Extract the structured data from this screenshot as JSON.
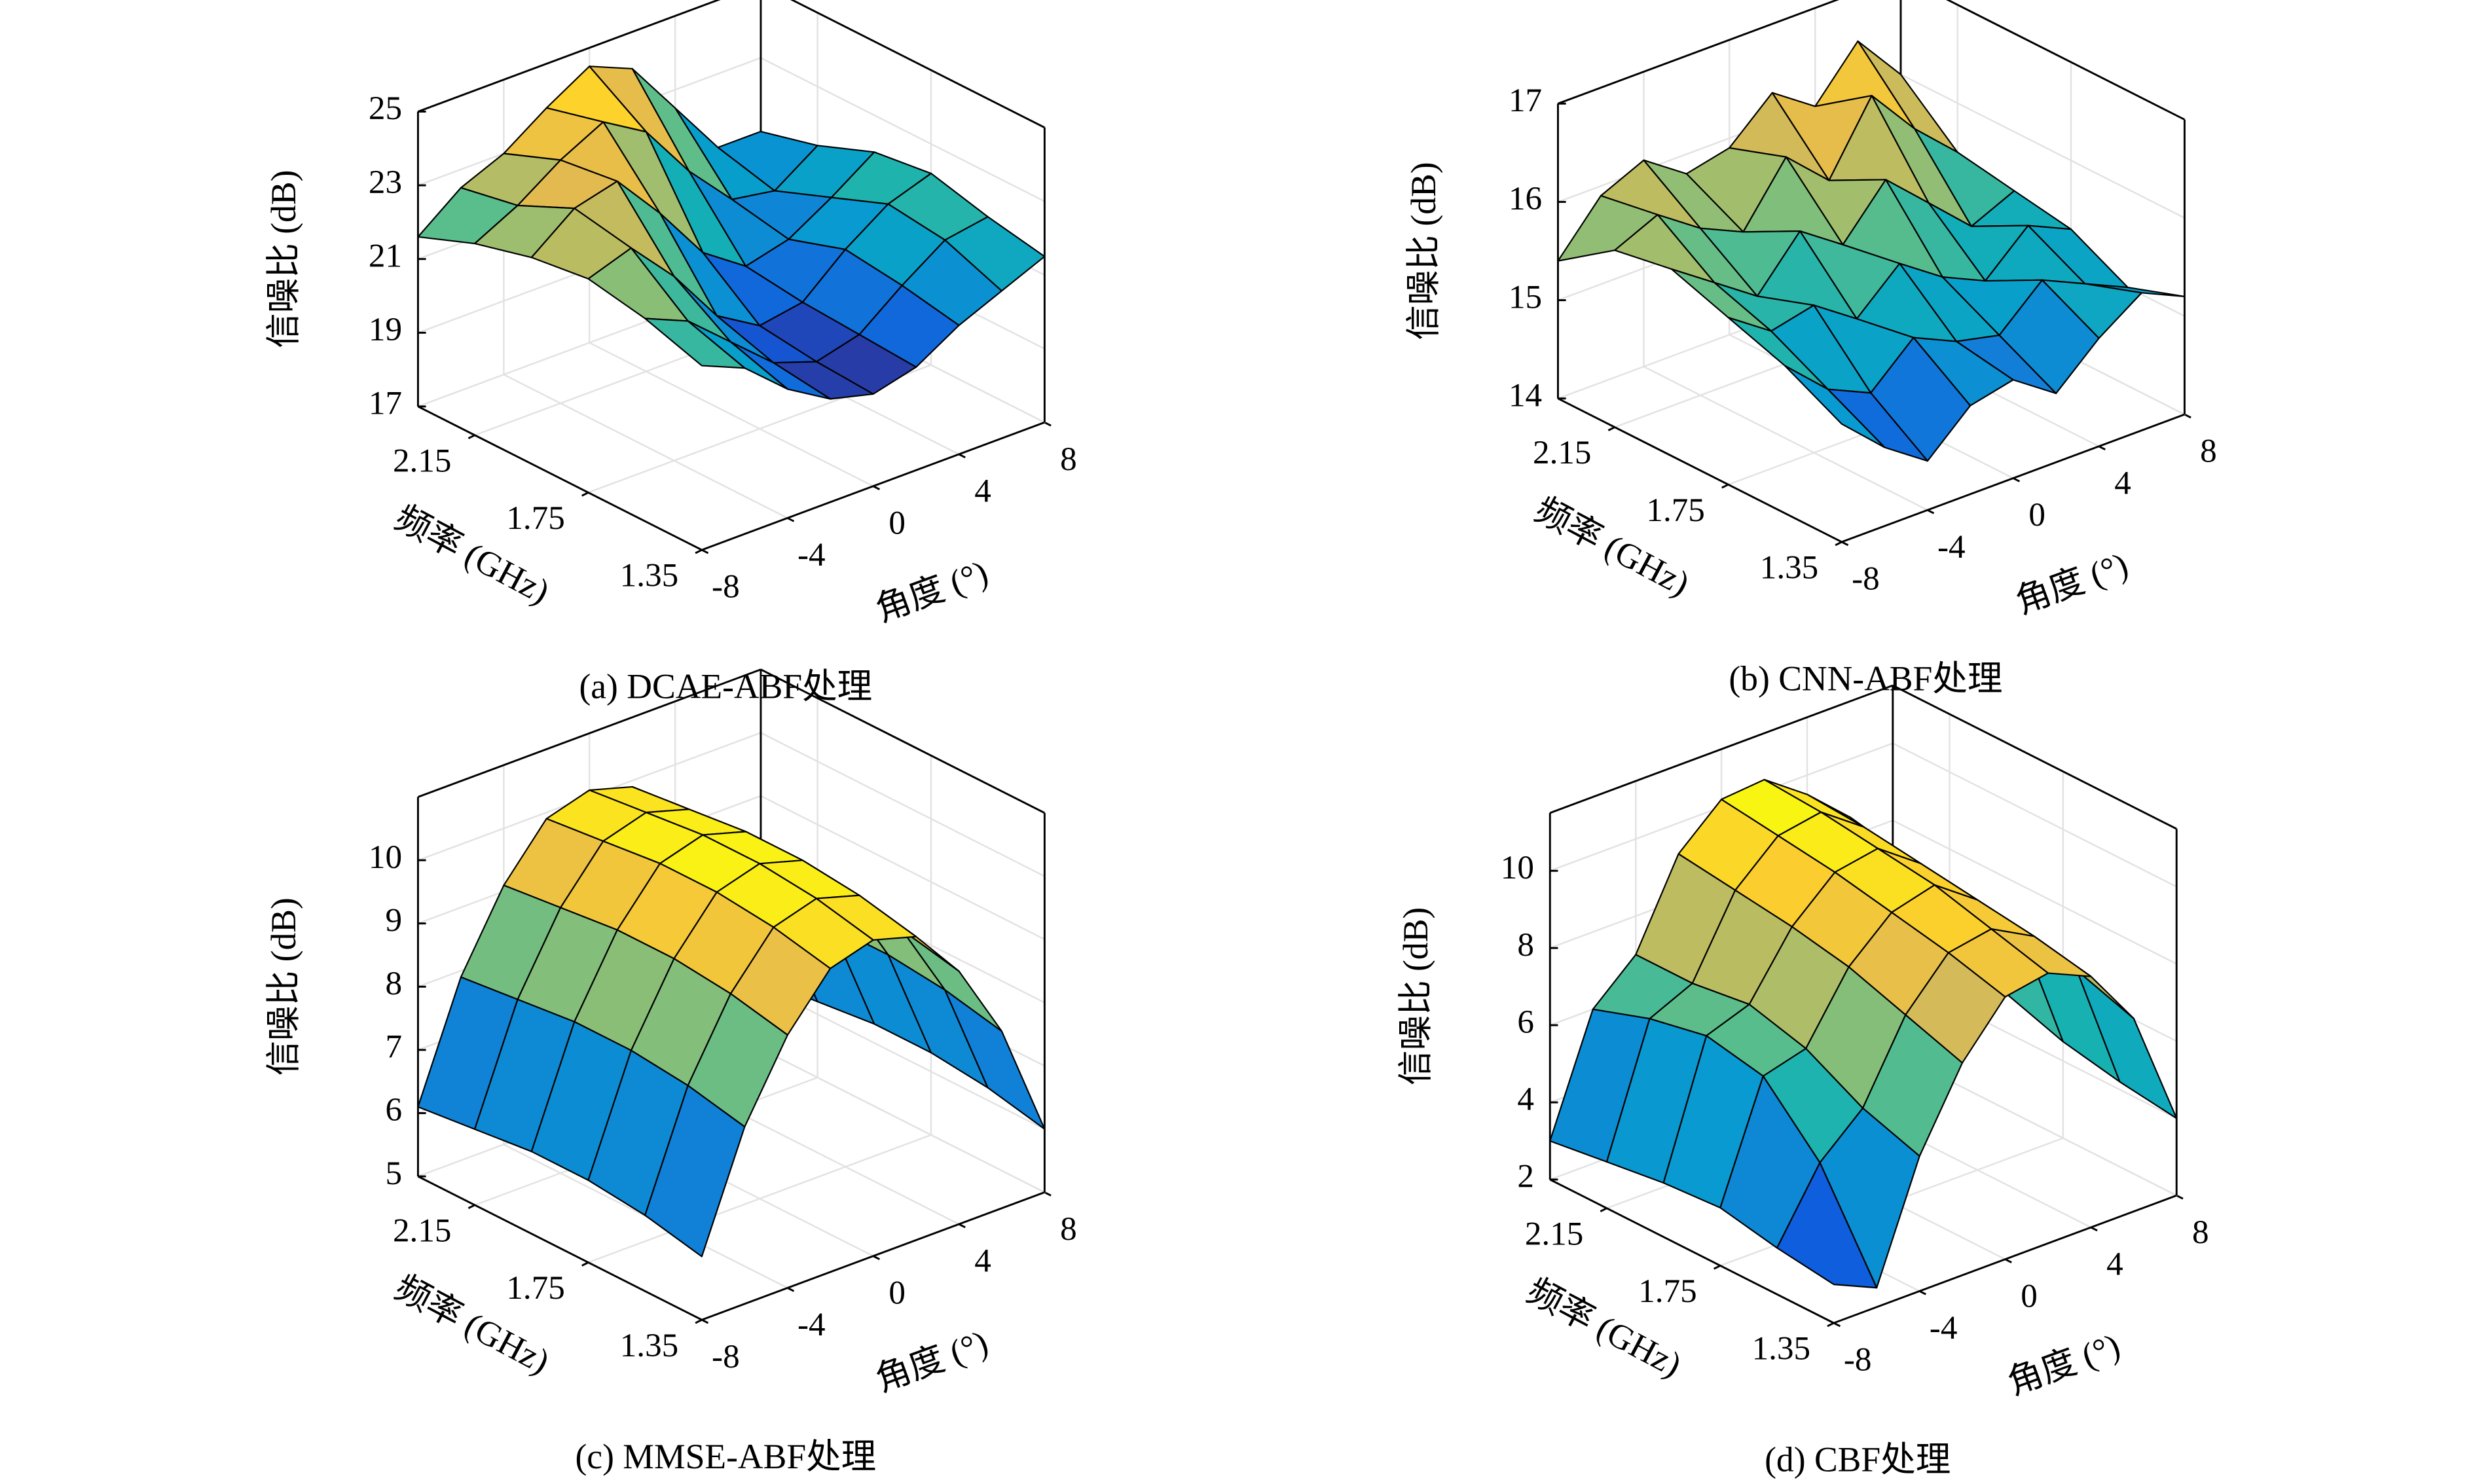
{
  "chart_data": [
    {
      "type": "surface",
      "title": "(a) DCAE-ABF处理",
      "xlabel": "角度 (°)",
      "ylabel": "频率 (GHz)",
      "zlabel": "信噪比 (dB)",
      "x": [
        -8,
        -6,
        -4,
        -2,
        0,
        2,
        4,
        6,
        8
      ],
      "y": [
        1.35,
        1.55,
        1.75,
        1.95,
        2.15,
        2.35
      ],
      "values": [
        [
          22.0,
          21.5,
          20.5,
          19.8,
          19.5,
          19.8,
          20.5,
          21.0,
          21.5
        ],
        [
          22.5,
          22.0,
          21.0,
          20.0,
          19.6,
          19.9,
          20.8,
          21.6,
          21.8
        ],
        [
          22.8,
          23.2,
          22.0,
          20.5,
          19.8,
          20.0,
          21.0,
          21.8,
          22.2
        ],
        [
          22.6,
          23.5,
          23.8,
          22.5,
          21.0,
          20.2,
          20.5,
          21.2,
          22.0
        ],
        [
          22.2,
          22.8,
          23.6,
          24.2,
          23.5,
          22.0,
          20.8,
          20.6,
          21.4
        ],
        [
          21.6,
          22.5,
          23.0,
          23.8,
          24.5,
          24.0,
          22.5,
          21.0,
          21.0
        ]
      ],
      "xlim": [
        -8,
        8
      ],
      "ylim": [
        1.35,
        2.35
      ],
      "zlim": [
        17,
        25
      ],
      "xticks": [
        -8,
        -4,
        0,
        4,
        8
      ],
      "yticks": [
        1.35,
        1.75,
        2.15
      ],
      "zticks": [
        17,
        19,
        21,
        23,
        25
      ],
      "grid": true,
      "colormap": "parula"
    },
    {
      "type": "surface",
      "title": "(b) CNN-ABF处理",
      "xlabel": "角度 (°)",
      "ylabel": "频率 (GHz)",
      "zlabel": "信噪比 (dB)",
      "x": [
        -8,
        -6,
        -4,
        -2,
        0,
        2,
        4,
        6,
        8
      ],
      "y": [
        1.35,
        1.55,
        1.75,
        1.95,
        2.15,
        2.35
      ],
      "values": [
        [
          15.2,
          14.8,
          14.5,
          14.9,
          15.0,
          14.7,
          15.1,
          15.4,
          15.2
        ],
        [
          15.5,
          15.1,
          14.9,
          15.3,
          15.1,
          15.0,
          15.4,
          15.2,
          15.0
        ],
        [
          15.7,
          15.4,
          15.5,
          15.2,
          15.6,
          15.3,
          15.1,
          15.5,
          15.3
        ],
        [
          15.9,
          15.6,
          15.3,
          15.8,
          15.5,
          16.0,
          15.6,
          15.2,
          15.4
        ],
        [
          15.8,
          16.0,
          15.7,
          15.5,
          16.1,
          15.7,
          16.4,
          15.9,
          15.5
        ],
        [
          15.4,
          15.9,
          16.1,
          15.8,
          15.9,
          16.3,
          16.0,
          16.5,
          16.0
        ]
      ],
      "xlim": [
        -8,
        8
      ],
      "ylim": [
        1.35,
        2.35
      ],
      "zlim": [
        14,
        17
      ],
      "xticks": [
        -8,
        -4,
        0,
        4,
        8
      ],
      "yticks": [
        1.35,
        1.75,
        2.15
      ],
      "zticks": [
        14,
        15,
        16,
        17
      ],
      "grid": true,
      "colormap": "parula"
    },
    {
      "type": "surface",
      "title": "(c) MMSE-ABF处理",
      "xlabel": "角度 (°)",
      "ylabel": "频率 (GHz)",
      "zlabel": "信噪比 (dB)",
      "x": [
        -8,
        -6,
        -4,
        -2,
        0,
        2,
        4,
        6,
        8
      ],
      "y": [
        1.35,
        1.55,
        1.75,
        1.95,
        2.15,
        2.35
      ],
      "values": [
        [
          6.0,
          7.8,
          9.0,
          9.8,
          10.0,
          9.8,
          9.0,
          7.8,
          6.0
        ],
        [
          6.2,
          8.0,
          9.2,
          10.0,
          10.2,
          10.0,
          9.2,
          8.0,
          6.2
        ],
        [
          6.3,
          8.1,
          9.3,
          10.1,
          10.3,
          10.1,
          9.3,
          8.1,
          6.3
        ],
        [
          6.3,
          8.1,
          9.3,
          10.1,
          10.3,
          10.1,
          9.3,
          8.1,
          6.3
        ],
        [
          6.2,
          8.0,
          9.2,
          10.0,
          10.2,
          10.0,
          9.2,
          8.0,
          6.2
        ],
        [
          6.1,
          7.9,
          9.1,
          9.9,
          10.1,
          9.9,
          9.1,
          7.9,
          6.1
        ]
      ],
      "xlim": [
        -8,
        8
      ],
      "ylim": [
        1.35,
        2.35
      ],
      "zlim": [
        5,
        11
      ],
      "xticks": [
        -8,
        -4,
        0,
        4,
        8
      ],
      "yticks": [
        1.35,
        1.75,
        2.15
      ],
      "zticks": [
        5,
        6,
        7,
        8,
        9,
        10
      ],
      "grid": true,
      "colormap": "parula"
    },
    {
      "type": "surface",
      "title": "(d) CBF处理",
      "xlabel": "角度 (°)",
      "ylabel": "频率 (GHz)",
      "zlabel": "信噪比 (dB)",
      "x": [
        -8,
        -6,
        -4,
        -2,
        0,
        2,
        4,
        6,
        8
      ],
      "y": [
        1.35,
        1.55,
        1.75,
        1.95,
        2.15,
        2.35
      ],
      "values": [
        [
          3.0,
          2.5,
          5.5,
          7.5,
          8.8,
          9.0,
          8.5,
          7.0,
          4.0
        ],
        [
          3.2,
          5.0,
          6.0,
          8.0,
          9.2,
          9.4,
          8.8,
          7.5,
          4.2
        ],
        [
          3.5,
          6.5,
          6.8,
          8.5,
          9.5,
          9.8,
          9.0,
          7.8,
          4.5
        ],
        [
          3.4,
          6.8,
          7.2,
          8.8,
          9.8,
          10.0,
          9.2,
          8.0,
          5.0
        ],
        [
          3.2,
          6.5,
          7.0,
          9.0,
          10.0,
          10.2,
          9.4,
          8.2,
          5.5
        ],
        [
          3.0,
          6.0,
          7.0,
          9.2,
          10.2,
          10.3,
          9.5,
          8.5,
          6.0
        ]
      ],
      "xlim": [
        -8,
        8
      ],
      "ylim": [
        1.35,
        2.35
      ],
      "zlim": [
        2,
        11.5
      ],
      "xticks": [
        -8,
        -4,
        0,
        4,
        8
      ],
      "yticks": [
        1.35,
        1.75,
        2.15
      ],
      "zticks": [
        2,
        4,
        6,
        8,
        10
      ],
      "grid": true,
      "colormap": "parula"
    }
  ]
}
